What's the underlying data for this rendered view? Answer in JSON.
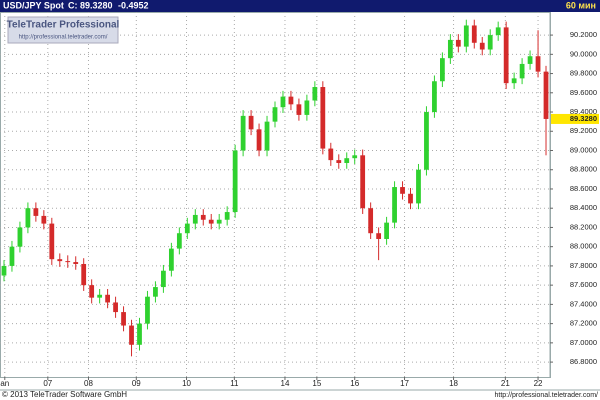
{
  "chart_data": {
    "type": "candlestick",
    "title": "USD/JPY Spot",
    "last_text": "C: 89.3280",
    "change_text": "-0.4952",
    "interval": "60 мин",
    "logo_title": "TeleTrader Professional",
    "logo_url": "http://professional.teletrader.com/",
    "footer_left": "© 2013 TeleTrader Software GmbH",
    "footer_right": "http://professional.teletrader.com/",
    "last_price": 89.328,
    "last_price_label": "89.3280",
    "up_color": "#2fd12f",
    "down_color": "#d42a2a",
    "grid": true,
    "xlim": [
      -0.5,
      68.5
    ],
    "xticks": [
      {
        "value": 0.1,
        "label": "an"
      },
      {
        "value": 5.5,
        "label": "07"
      },
      {
        "value": 10.6,
        "label": "08"
      },
      {
        "value": 16.6,
        "label": "09"
      },
      {
        "value": 22.9,
        "label": "10"
      },
      {
        "value": 28.9,
        "label": "11"
      },
      {
        "value": 35.25,
        "label": "14"
      },
      {
        "value": 39.25,
        "label": "15"
      },
      {
        "value": 44,
        "label": "16"
      },
      {
        "value": 50.25,
        "label": "17"
      },
      {
        "value": 56.4,
        "label": "18"
      },
      {
        "value": 62.9,
        "label": "21"
      },
      {
        "value": 67,
        "label": "22"
      }
    ],
    "ylim": [
      86.645,
      90.44
    ],
    "yticks": [
      {
        "value": 86.8,
        "label": "86.8000"
      },
      {
        "value": 87.0,
        "label": "87.0000"
      },
      {
        "value": 87.2,
        "label": "87.2000"
      },
      {
        "value": 87.4,
        "label": "87.4000"
      },
      {
        "value": 87.6,
        "label": "87.6000"
      },
      {
        "value": 87.8,
        "label": "87.8000"
      },
      {
        "value": 88.0,
        "label": "88.0000"
      },
      {
        "value": 88.2,
        "label": "88.2000"
      },
      {
        "value": 88.4,
        "label": "88.4000"
      },
      {
        "value": 88.6,
        "label": "88.6000"
      },
      {
        "value": 88.8,
        "label": "88.8000"
      },
      {
        "value": 89.0,
        "label": "89.0000"
      },
      {
        "value": 89.2,
        "label": "89.2000"
      },
      {
        "value": 89.4,
        "label": "89.4000"
      },
      {
        "value": 89.6,
        "label": "89.6000"
      },
      {
        "value": 89.8,
        "label": "89.8000"
      },
      {
        "value": 90.0,
        "label": "90.0000"
      },
      {
        "value": 90.2,
        "label": "90.2000"
      }
    ],
    "open": [
      87.7,
      87.8,
      88.0,
      88.2,
      88.4,
      88.32,
      88.24,
      87.87,
      87.85,
      87.84,
      87.82,
      87.6,
      87.47,
      87.5,
      87.42,
      87.32,
      87.18,
      86.98,
      87.2,
      87.48,
      87.58,
      87.75,
      87.98,
      88.14,
      88.24,
      88.33,
      88.28,
      88.24,
      88.28,
      88.36,
      89.0,
      89.36,
      89.22,
      89.0,
      89.3,
      89.45,
      89.56,
      89.48,
      89.37,
      89.52,
      89.66,
      89.02,
      88.9,
      88.87,
      88.92,
      88.95,
      88.4,
      88.14,
      88.08,
      88.25,
      88.62,
      88.55,
      88.45,
      88.8,
      89.4,
      89.72,
      89.96,
      90.15,
      90.08,
      90.3,
      90.12,
      90.05,
      90.2,
      90.28,
      89.7,
      89.75,
      89.9,
      89.98,
      89.82
    ],
    "high": [
      87.86,
      88.06,
      88.26,
      88.46,
      88.46,
      88.38,
      88.3,
      87.93,
      87.91,
      87.9,
      87.88,
      87.66,
      87.56,
      87.56,
      87.48,
      87.38,
      87.24,
      87.26,
      87.54,
      87.64,
      87.81,
      88.04,
      88.2,
      88.3,
      88.39,
      88.39,
      88.34,
      88.34,
      88.42,
      89.06,
      89.42,
      89.42,
      89.28,
      89.36,
      89.51,
      89.62,
      89.62,
      89.54,
      89.58,
      89.72,
      89.72,
      89.08,
      88.96,
      88.98,
      89.01,
      89.01,
      88.46,
      88.2,
      88.31,
      88.68,
      88.68,
      88.61,
      88.86,
      89.46,
      89.78,
      90.02,
      90.21,
      90.21,
      90.36,
      90.36,
      90.18,
      90.26,
      90.34,
      90.34,
      89.81,
      89.96,
      90.04,
      90.25,
      89.88
    ],
    "low": [
      87.64,
      87.74,
      87.94,
      88.14,
      88.26,
      88.18,
      87.81,
      87.79,
      87.78,
      87.76,
      87.54,
      87.41,
      87.41,
      87.36,
      87.26,
      87.12,
      86.86,
      86.92,
      87.14,
      87.42,
      87.52,
      87.69,
      87.92,
      88.08,
      88.18,
      88.22,
      88.18,
      88.18,
      88.22,
      88.3,
      88.94,
      89.16,
      88.94,
      88.94,
      89.24,
      89.39,
      89.42,
      89.31,
      89.31,
      89.46,
      88.96,
      88.84,
      88.81,
      88.81,
      88.86,
      88.34,
      88.08,
      87.86,
      88.02,
      88.19,
      88.49,
      88.39,
      88.39,
      88.74,
      89.34,
      89.66,
      89.9,
      90.02,
      90.02,
      90.06,
      89.99,
      89.99,
      90.14,
      89.64,
      89.64,
      89.69,
      89.84,
      89.76,
      88.95
    ],
    "close": [
      87.8,
      88.0,
      88.2,
      88.4,
      88.32,
      88.24,
      87.87,
      87.85,
      87.84,
      87.82,
      87.6,
      87.47,
      87.5,
      87.42,
      87.32,
      87.18,
      86.98,
      87.2,
      87.48,
      87.58,
      87.75,
      87.98,
      88.14,
      88.24,
      88.33,
      88.28,
      88.24,
      88.28,
      88.36,
      89.0,
      89.36,
      89.22,
      89.0,
      89.3,
      89.45,
      89.56,
      89.48,
      89.37,
      89.52,
      89.66,
      89.02,
      88.9,
      88.87,
      88.92,
      88.95,
      88.4,
      88.14,
      88.08,
      88.25,
      88.62,
      88.55,
      88.45,
      88.8,
      89.4,
      89.72,
      89.96,
      90.15,
      90.08,
      90.3,
      90.12,
      90.05,
      90.2,
      90.28,
      89.7,
      89.75,
      89.9,
      89.98,
      89.82,
      89.328
    ]
  }
}
